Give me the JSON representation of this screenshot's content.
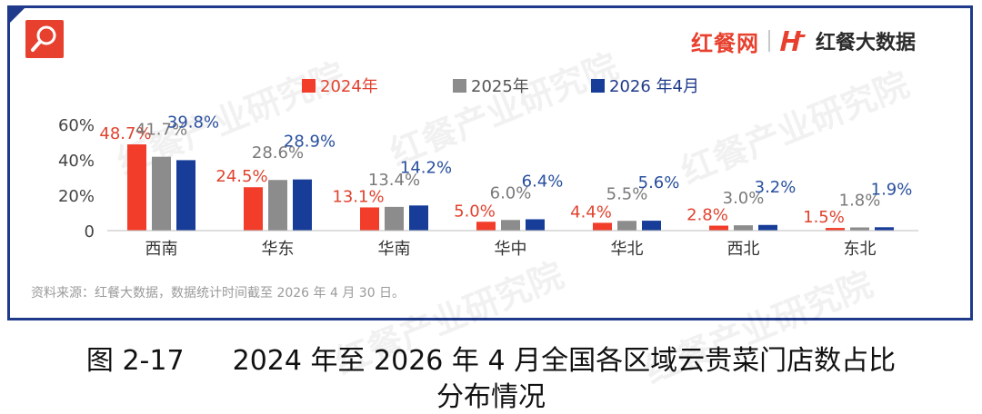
{
  "brand": {
    "name_red": "红餐网",
    "name_dark": "红餐大数据"
  },
  "watermark": "红餐产业研究院",
  "source_note": "资料来源：红餐大数据，数据统计时间截至 2026 年 4 月 30 日。",
  "caption": {
    "figure_no": "图 2-17",
    "title_line1": "2024 年至 2026 年 4 月全国各区域云贵菜门店数占比",
    "title_line2": "分布情况"
  },
  "colors": {
    "s2024": "#f23d2a",
    "s2025": "#8c8c8c",
    "s2026": "#173d99",
    "frame": "#1f3a8a"
  },
  "chart_data": {
    "type": "bar",
    "categories": [
      "西南",
      "华东",
      "华南",
      "华中",
      "华北",
      "西北",
      "东北"
    ],
    "series": [
      {
        "name": "2024年",
        "values": [
          48.7,
          24.5,
          13.1,
          5.0,
          4.4,
          2.8,
          1.5
        ],
        "labels": [
          "48.7%",
          "24.5%",
          "13.1%",
          "5.0%",
          "4.4%",
          "2.8%",
          "1.5%"
        ]
      },
      {
        "name": "2025年",
        "values": [
          41.7,
          28.6,
          13.4,
          6.0,
          5.5,
          3.0,
          1.8
        ],
        "labels": [
          "41.7%",
          "28.6%",
          "13.4%",
          "6.0%",
          "5.5%",
          "3.0%",
          "1.8%"
        ]
      },
      {
        "name": "2026 年4月",
        "values": [
          39.8,
          28.9,
          14.2,
          6.4,
          5.6,
          3.2,
          1.9
        ],
        "labels": [
          "39.8%",
          "28.9%",
          "14.2%",
          "6.4%",
          "5.6%",
          "3.2%",
          "1.9%"
        ]
      }
    ],
    "yticks": [
      "60%",
      "40%",
      "20%",
      "0"
    ],
    "ylim": [
      0,
      60
    ],
    "legend": "top-center",
    "grid": false
  }
}
